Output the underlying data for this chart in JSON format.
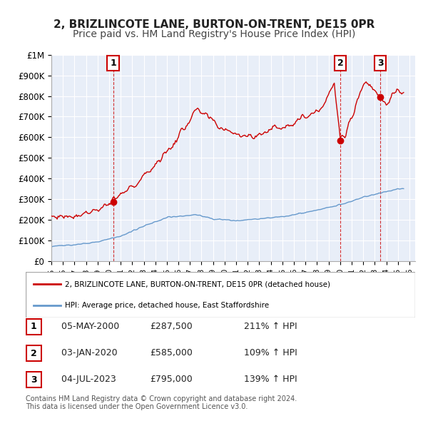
{
  "title": "2, BRIZLINCOTE LANE, BURTON-ON-TRENT, DE15 0PR",
  "subtitle": "Price paid vs. HM Land Registry's House Price Index (HPI)",
  "xlabel": "",
  "ylabel": "",
  "background_color": "#ffffff",
  "plot_bg_color": "#e8eef8",
  "grid_color": "#ffffff",
  "sale_color": "#cc0000",
  "hpi_color": "#6699cc",
  "sale_dot_color": "#cc0000",
  "vline_color": "#cc0000",
  "ylim": [
    0,
    1000000
  ],
  "yticks": [
    0,
    100000,
    200000,
    300000,
    400000,
    500000,
    600000,
    700000,
    800000,
    900000,
    1000000
  ],
  "ytick_labels": [
    "£0",
    "£100K",
    "£200K",
    "£300K",
    "£400K",
    "£500K",
    "£600K",
    "£700K",
    "£800K",
    "£900K",
    "£1M"
  ],
  "xlim_start": 1995.0,
  "xlim_end": 2026.5,
  "xtick_years": [
    1995,
    1996,
    1997,
    1998,
    1999,
    2000,
    2001,
    2002,
    2003,
    2004,
    2005,
    2006,
    2007,
    2008,
    2009,
    2010,
    2011,
    2012,
    2013,
    2014,
    2015,
    2016,
    2017,
    2018,
    2019,
    2020,
    2021,
    2022,
    2023,
    2024,
    2025,
    2026
  ],
  "sale_events": [
    {
      "date_num": 2000.35,
      "price": 287500,
      "label": "1"
    },
    {
      "date_num": 2020.01,
      "price": 585000,
      "label": "2"
    },
    {
      "date_num": 2023.5,
      "price": 795000,
      "label": "3"
    }
  ],
  "legend_sale_label": "2, BRIZLINCOTE LANE, BURTON-ON-TRENT, DE15 0PR (detached house)",
  "legend_hpi_label": "HPI: Average price, detached house, East Staffordshire",
  "table_rows": [
    {
      "num": "1",
      "date": "05-MAY-2000",
      "price": "£287,500",
      "pct": "211% ↑ HPI"
    },
    {
      "num": "2",
      "date": "03-JAN-2020",
      "price": "£585,000",
      "pct": "109% ↑ HPI"
    },
    {
      "num": "3",
      "date": "04-JUL-2023",
      "price": "£795,000",
      "pct": "139% ↑ HPI"
    }
  ],
  "footer": "Contains HM Land Registry data © Crown copyright and database right 2024.\nThis data is licensed under the Open Government Licence v3.0.",
  "title_fontsize": 11,
  "subtitle_fontsize": 10
}
